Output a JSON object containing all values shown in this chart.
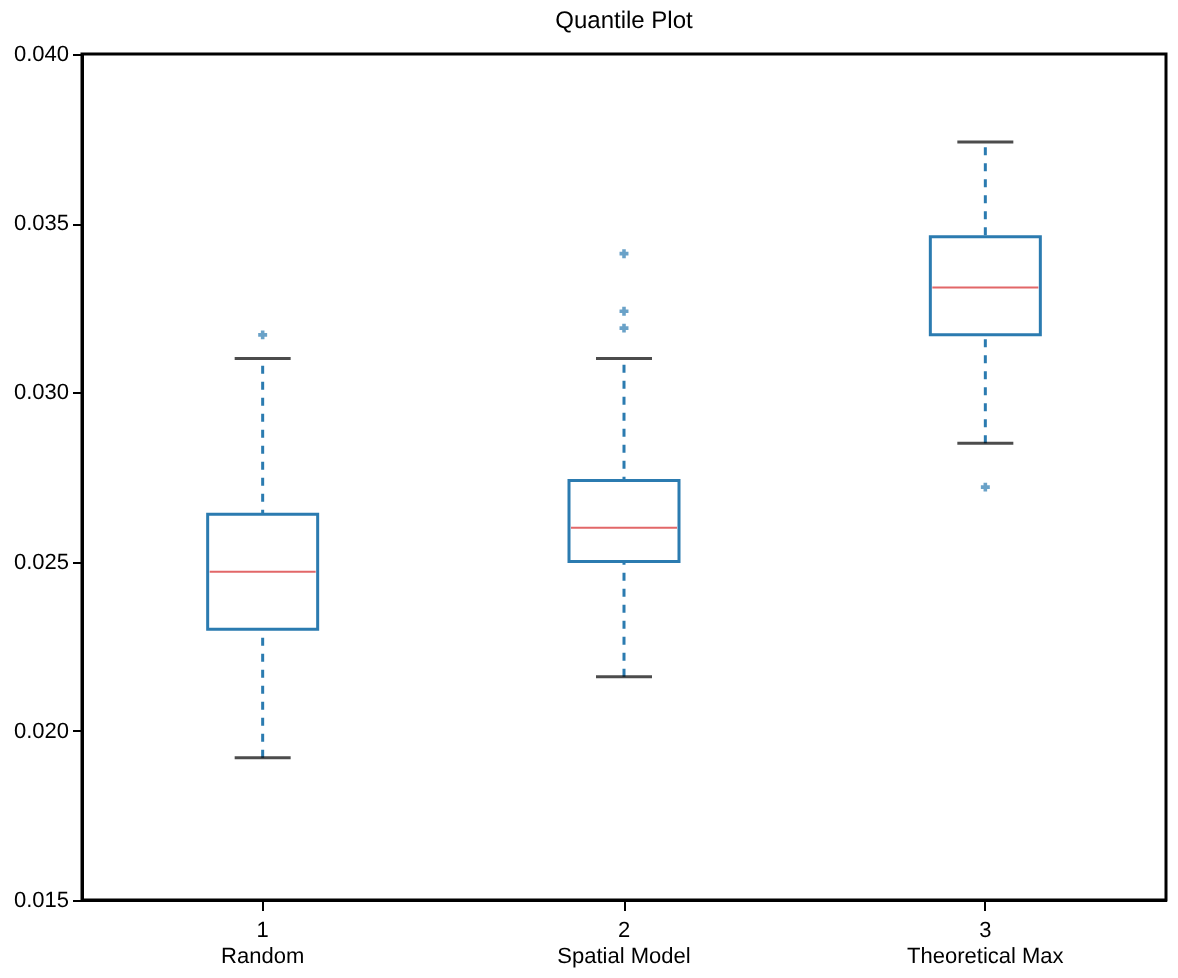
{
  "chart_data": {
    "type": "box",
    "title": "Quantile Plot",
    "categories": [
      "1\nRandom",
      "2\nSpatial Model",
      "3\nTheoretical Max"
    ],
    "series": [
      {
        "color": "#2b7bb0",
        "boxes": [
          {
            "low": 0.0192,
            "q1": 0.023,
            "median": 0.0247,
            "q3": 0.0264,
            "high": 0.031,
            "outliers": [
              0.0317
            ]
          },
          {
            "low": 0.0216,
            "q1": 0.025,
            "median": 0.026,
            "q3": 0.0274,
            "high": 0.031,
            "outliers": [
              0.0319,
              0.0324,
              0.0341
            ]
          },
          {
            "low": 0.0285,
            "q1": 0.0317,
            "median": 0.0331,
            "q3": 0.0346,
            "high": 0.0374,
            "outliers": [
              0.0272
            ]
          }
        ]
      }
    ],
    "ylim": [
      0.015,
      0.04
    ],
    "yticks": [
      0.015,
      {
        "value": 0.02,
        "label": "0.020"
      },
      0.025,
      {
        "value": 0.03,
        "label": "0.030"
      },
      0.035,
      {
        "value": 0.04,
        "label": "0.040"
      }
    ],
    "grid": false,
    "marker": "cross",
    "line_style": "dashed"
  }
}
